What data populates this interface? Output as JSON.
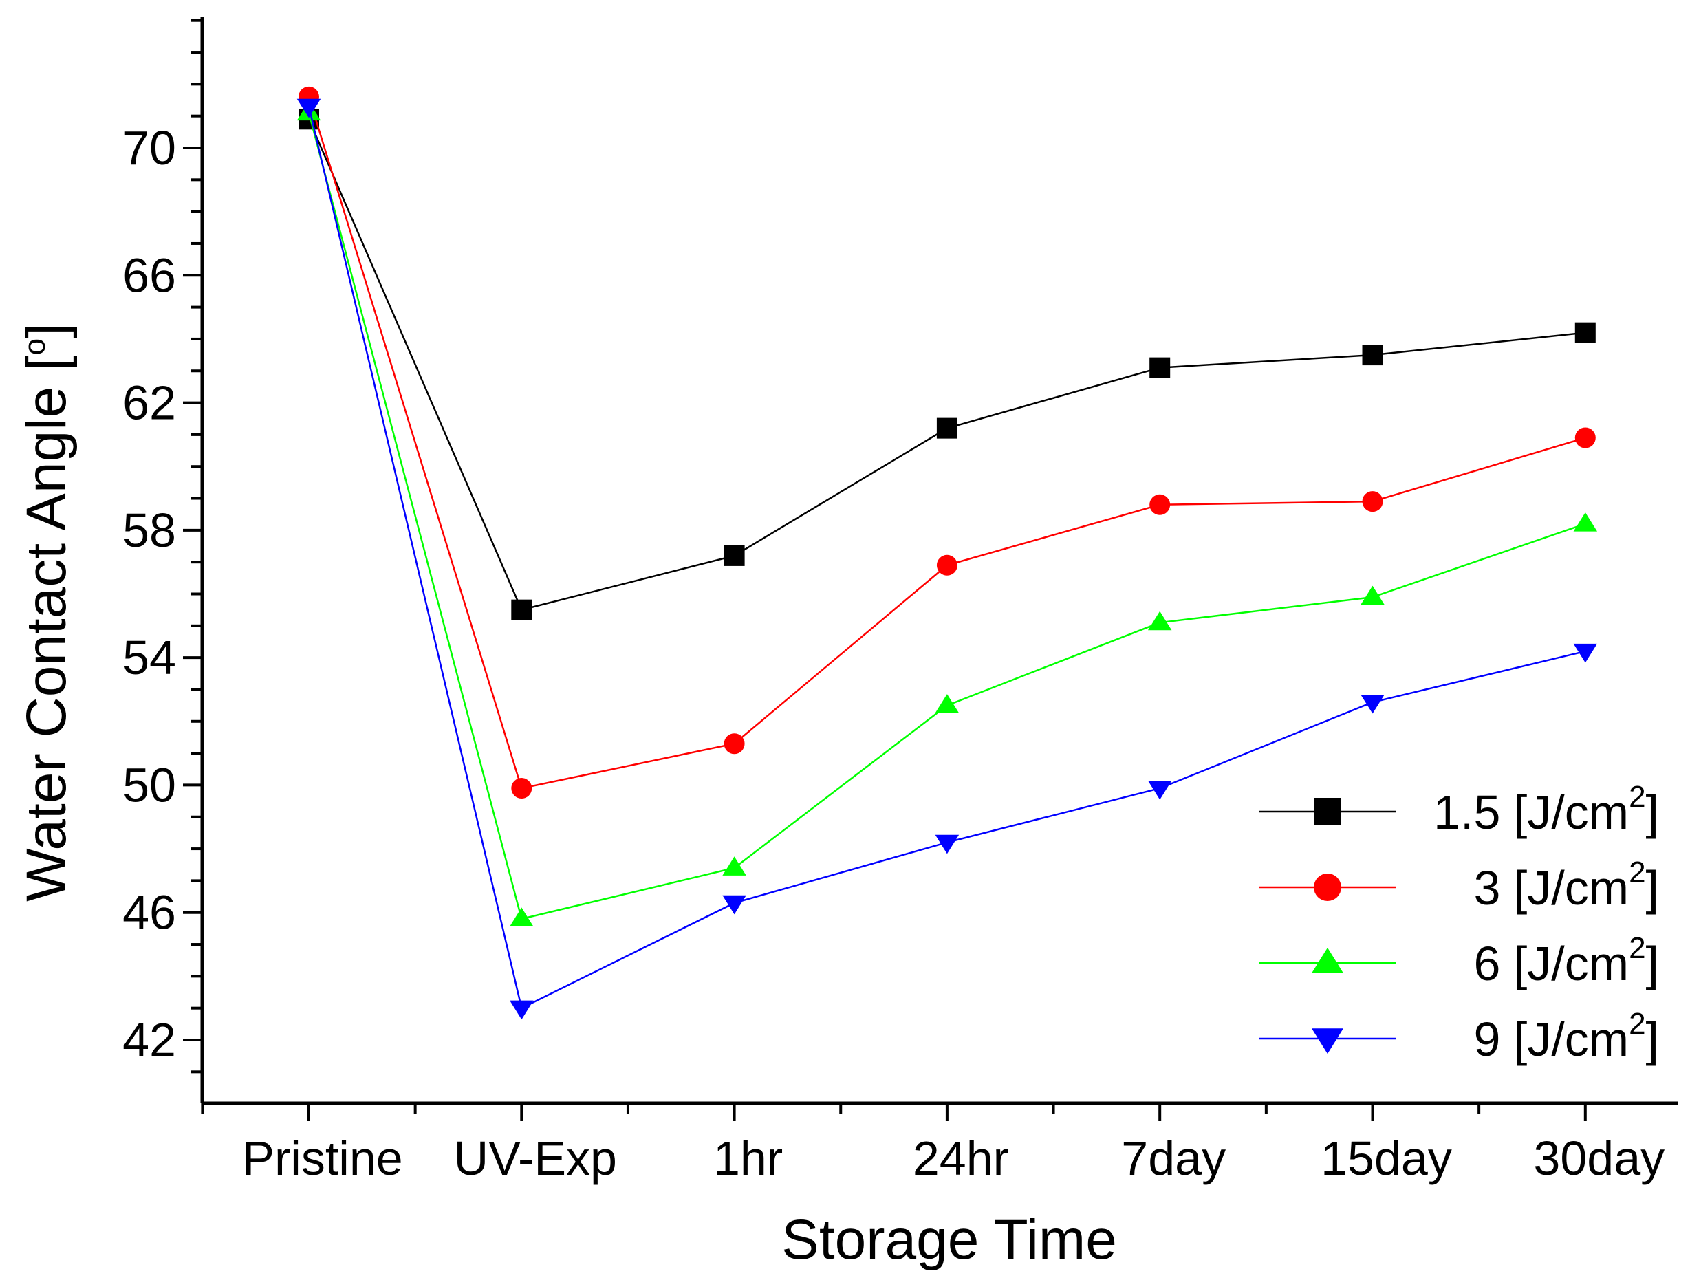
{
  "chart_data": {
    "type": "line",
    "title": "",
    "xlabel": "Storage Time",
    "ylabel": "Water Contact Angle [",
    "ylabel_degree": "o",
    "ylabel_close": "]",
    "categories": [
      "Pristine",
      "UV-Exp",
      "1hr",
      "24hr",
      "7day",
      "15day",
      "30day"
    ],
    "ylim": [
      40,
      74
    ],
    "yticks": [
      42,
      46,
      50,
      54,
      58,
      62,
      66,
      70
    ],
    "grid": false,
    "legend_position": "bottom-right",
    "series": [
      {
        "name": "1.5 [J/cm",
        "unit_sup": "2",
        "unit_close": "]",
        "color": "#000000",
        "marker": "square",
        "values": [
          70.9,
          55.5,
          57.2,
          61.2,
          63.1,
          63.5,
          64.2
        ]
      },
      {
        "name": "3 [J/cm",
        "unit_sup": "2",
        "unit_close": "]",
        "color": "#ff0000",
        "marker": "circle",
        "values": [
          71.6,
          49.9,
          51.3,
          56.9,
          58.8,
          58.9,
          60.9
        ]
      },
      {
        "name": "6 [J/cm",
        "unit_sup": "2",
        "unit_close": "]",
        "color": "#00ff00",
        "marker": "triangle-up",
        "values": [
          71.1,
          45.8,
          47.4,
          52.5,
          55.1,
          55.9,
          58.2
        ]
      },
      {
        "name": "9 [J/cm",
        "unit_sup": "2",
        "unit_close": "]",
        "color": "#0000ff",
        "marker": "triangle-down",
        "values": [
          71.3,
          43.0,
          46.3,
          48.2,
          49.9,
          52.6,
          54.2
        ]
      }
    ]
  }
}
